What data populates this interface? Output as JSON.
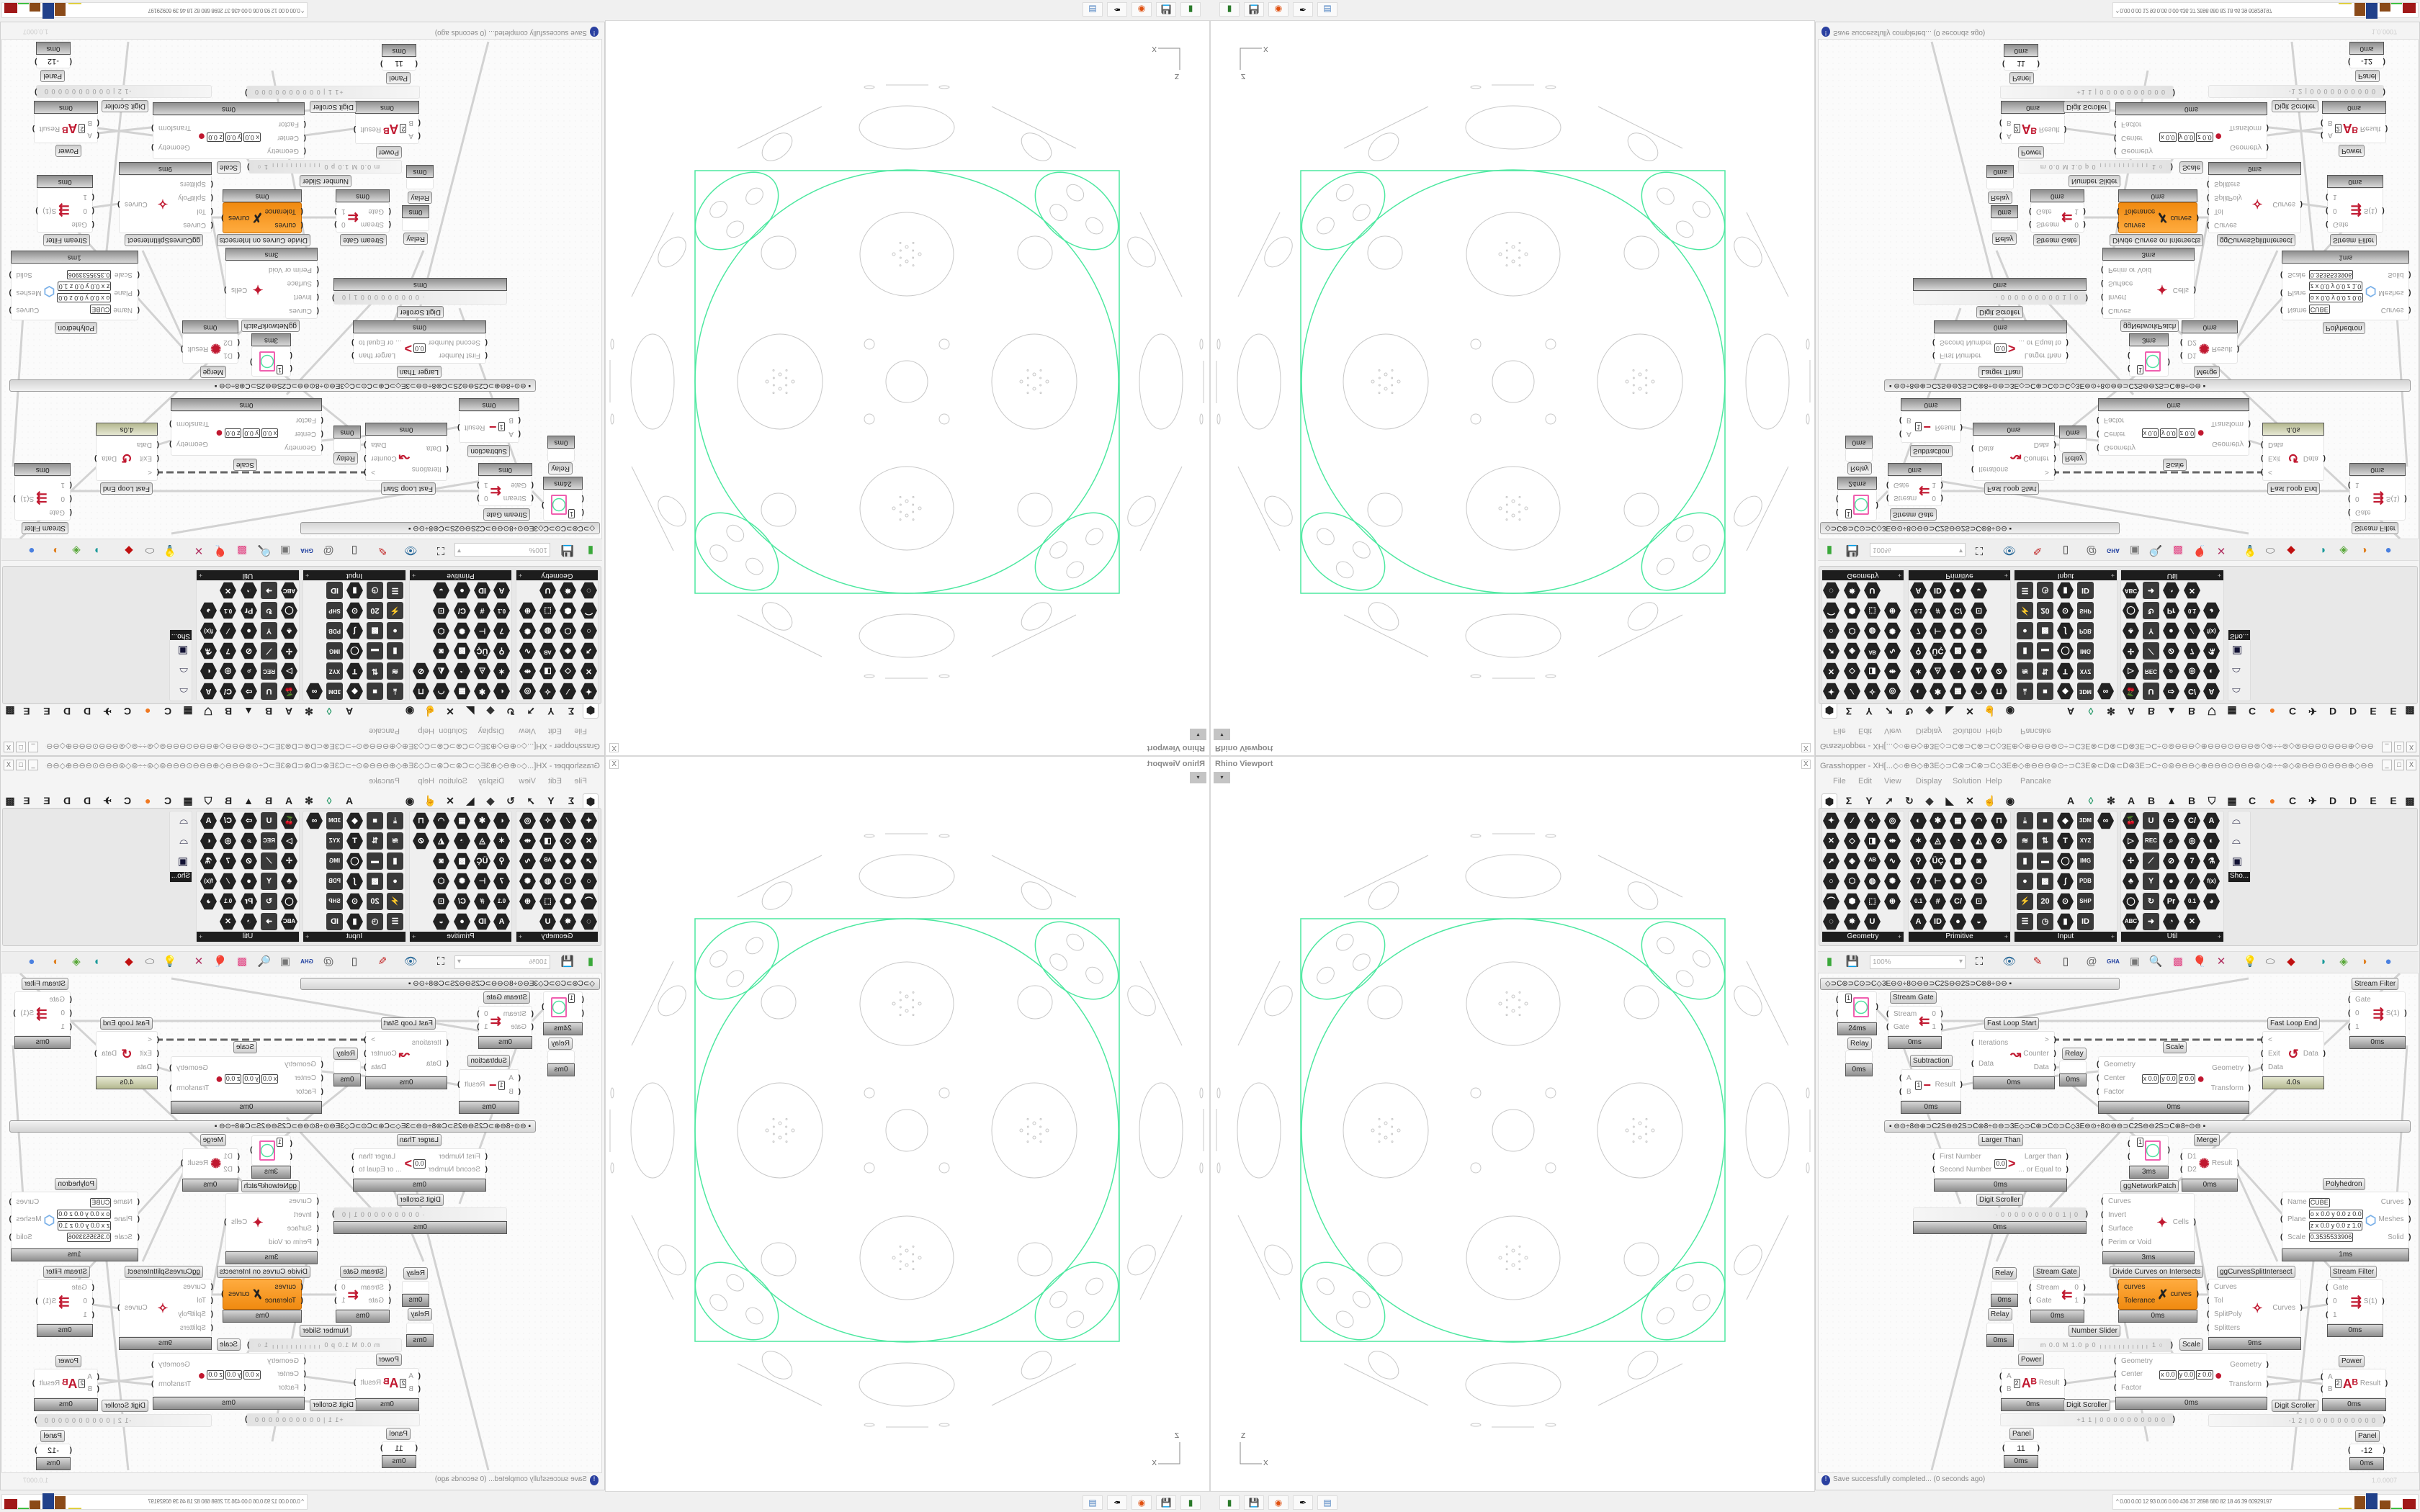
{
  "viewport": {
    "title": "Rhino Viewport",
    "close": "X",
    "dropdown": "▾",
    "axis_z": "Z",
    "axis_x": "X",
    "curve_color": "#4de8a0",
    "geometry_color": "#c8c8c8"
  },
  "gh": {
    "title": "Grasshopper - XH[...◇○⊕⊖◇⊕3E◇⊃C⊗⊃C⊗⊃C◇3E⊕◇⊕⊖⊖⊖⊚⊙÷⊃C3E⊗⊂D⊗⊂D⊗3E⊃C÷⊙⊚⊖⊖⊖◇⊕⊖⊖⊖⊙⊖⊖⊖⊚◇⊚÷÷⊚◇⊚⊖⊖⊖⊙⊖⊖⊖⊕◇⊖⊖⊖⊚⊙÷⊃C3E⊗⊂D⊗⊂D...",
    "window_buttons": [
      "_",
      "□",
      "X"
    ],
    "menu": [
      "File",
      "Edit",
      "View",
      "Display",
      "Solution",
      "Help",
      "Pancake"
    ],
    "tabs": [
      "⬢",
      "Σ",
      "Y",
      "➚",
      "↻",
      "◆",
      "◣",
      "✕",
      "☝",
      "◉",
      "A",
      "◊",
      "✻",
      "A",
      "B",
      "▲",
      "B",
      "⛉",
      "▦",
      "C",
      "●",
      "C",
      "✈",
      "D",
      "D",
      "E",
      "E",
      "▩"
    ],
    "ribbon": [
      {
        "label": "Geometry",
        "icons": [
          "✦",
          "⁄",
          "✧",
          "◎",
          "✕",
          "◇",
          "◨",
          "⇹",
          "➚",
          "◈",
          "ᴬᴮ",
          "∿",
          "○",
          "⬡",
          "◍",
          "✺",
          "⌒",
          "⬢",
          "⬚",
          "⊛",
          "◌",
          "✵",
          "U"
        ]
      },
      {
        "label": "Primitive",
        "icons": [
          "◐",
          "✱",
          "▦",
          "◠",
          "⊓",
          "✶",
          "◬",
          "◔",
          "◭",
          "⊘",
          "⚲",
          "ÜÇ",
          "▩",
          "◙",
          "7",
          "⊢",
          "✺",
          "⬡",
          "0.1",
          "#",
          "C/",
          "⊡",
          "A",
          "ID",
          "●",
          "◒"
        ]
      },
      {
        "label": "Input",
        "icons": [
          "⤓",
          "■",
          "◆",
          "3DM",
          "∞",
          "≋",
          "⇅",
          "T",
          "XYZ",
          "▮",
          "▬",
          "◯",
          "IMG",
          "●",
          "▩",
          "∫",
          "PDB",
          "⚡",
          "20",
          "⊙",
          "SHP",
          "☰",
          "◷",
          "▮",
          "ID"
        ]
      },
      {
        "label": "Util",
        "icons": [
          "🍒",
          "U",
          "⇨",
          "C/",
          "A",
          "▷",
          "REC",
          "⌕",
          "◎",
          "◐",
          "✢",
          "⟋",
          "⊘",
          "7",
          "⚗",
          "♣",
          "Y",
          "●",
          "⁄",
          "f(x)",
          "◯",
          "↻",
          "Pr",
          "0.1",
          "◕",
          "ABC",
          "➜",
          "◔",
          "✕"
        ]
      }
    ],
    "sho": {
      "label": "Sho...",
      "icons": [
        "⌓",
        "⌓",
        "▣"
      ]
    },
    "toolbar": {
      "zoom": "100%",
      "zoom_arrow": "▾",
      "icons": [
        "new-file-icon",
        "save-icon",
        "zoom-extents-icon",
        "preview-eye-icon",
        "sketch-brush-icon",
        "cylinder-icon",
        "at-sign-icon",
        "gha-icon",
        "picture-icon",
        "search-icon",
        "package-icon",
        "balloon-icon",
        "wire-cross-icon",
        "bulb-icon",
        "capsule-icon",
        "red-gem-icon",
        "teal-shape-icon",
        "green-shape-icon",
        "half-sphere-icon",
        "blue-sphere-icon"
      ]
    },
    "groups": [
      "◇⊃C⊛⊃C⊙⊃C◇3E⊖⊙÷8⊙⊖⊖⊃C2S⊖⊖2S⊃C⊛8÷⊙⊖  ▪",
      "▪   ⊖⊙÷8⊖⊛⊃C2S⊖⊖2S⊃C⊛8÷⊙⊖⊃3E◇⊃C⊛⊃C⊙⊃C◇3E⊖⊙÷8⊙⊖⊖⊃C2S⊖⊖2S⊃C⊛8÷⊙⊖   ▪"
    ],
    "components": [
      {
        "id": "sf1",
        "label": "Stream Filter",
        "inputs": [
          "Gate",
          "0",
          "1"
        ],
        "outputs": [
          "S(1)"
        ],
        "footer": "0ms",
        "icon": "⇶"
      },
      {
        "id": "pv1",
        "label": "",
        "inputs": [
          "",
          ""
        ],
        "outputs": [
          ""
        ],
        "footer": "24ms",
        "value": "1",
        "swatch": true
      },
      {
        "id": "rel1",
        "label": "Relay",
        "inputs": [],
        "outputs": [],
        "footer": "0ms"
      },
      {
        "id": "sg1",
        "label": "Stream Gate",
        "inputs": [
          "Stream",
          "Gate"
        ],
        "outputs": [
          "0",
          "1"
        ],
        "footer": "0ms",
        "icon": "⇇"
      },
      {
        "id": "fls",
        "label": "Fast Loop Start",
        "inputs": [
          "Iterations",
          "Data"
        ],
        "outputs": [
          ">",
          "Counter",
          "Data"
        ],
        "footer": "0ms",
        "icon": "↝"
      },
      {
        "id": "fle",
        "label": "Fast Loop End",
        "inputs": [
          "<",
          "Exit",
          "Data"
        ],
        "outputs": [
          "Data"
        ],
        "footer": "4.0s",
        "green": true,
        "icon": "↺"
      },
      {
        "id": "sub",
        "label": "Subtraction",
        "inputs": [
          "A",
          "B"
        ],
        "outputs": [
          "Result"
        ],
        "footer": "0ms",
        "values": [
          "1"
        ],
        "icon": "−"
      },
      {
        "id": "rel2",
        "label": "Relay",
        "inputs": [],
        "outputs": [],
        "footer": "0ms"
      },
      {
        "id": "sc1",
        "label": "Scale",
        "inputs": [
          "Geometry",
          "Center",
          "Factor"
        ],
        "outputs": [
          "Geometry",
          "Transform"
        ],
        "footer": "0ms",
        "values": [
          "x 0.0",
          "y 0.0",
          "z 0.0"
        ],
        "icon": "●"
      },
      {
        "id": "lt",
        "label": "Larger Than",
        "inputs": [
          "First Number",
          "Second Number"
        ],
        "outputs": [
          "Larger than",
          "... or Equal to"
        ],
        "footer": "0ms",
        "values": [
          "0.0"
        ],
        "icon": ">"
      },
      {
        "id": "pv2",
        "label": "",
        "inputs": [
          "",
          ""
        ],
        "outputs": [
          ""
        ],
        "footer": "3ms",
        "value": "1",
        "swatch": true
      },
      {
        "id": "cells",
        "label": "ggNetworkPatch",
        "inputs": [
          "Curves",
          "Invert",
          "Surface",
          "Perim or Void"
        ],
        "outputs": [
          "Cells"
        ],
        "footer": "3ms",
        "icon": "✦"
      },
      {
        "id": "mg",
        "label": "Merge",
        "inputs": [
          "D1",
          "D2"
        ],
        "outputs": [
          "Result"
        ],
        "footer": "0ms",
        "icon": "✺"
      },
      {
        "id": "ds1",
        "label": "Digit Scroller",
        "inputs": [],
        "outputs": [
          ""
        ],
        "footer": "0ms",
        "scroller": "· 0 0 0 0 0 0 0 0 0 1 | 0"
      },
      {
        "id": "ph",
        "label": "Polyhedron",
        "inputs": [
          "Name",
          "Plane",
          "Scale"
        ],
        "outputs": [
          "Curves",
          "Meshes",
          "Solid"
        ],
        "footer": "1ms",
        "values": [
          "CUBE",
          "o x 0.0 y 0.0 z 0.0",
          "z x 0.0 y 0.0 z 1.0",
          "0.3535533906"
        ],
        "icon": "⬡"
      },
      {
        "id": "rel3",
        "label": "Relay",
        "inputs": [],
        "outputs": [],
        "footer": "0ms"
      },
      {
        "id": "rel4",
        "label": "Relay",
        "inputs": [],
        "outputs": [],
        "footer": "0ms"
      },
      {
        "id": "sg2",
        "label": "Stream Gate",
        "inputs": [
          "Stream",
          "Gate"
        ],
        "outputs": [
          "0",
          "1"
        ],
        "footer": "0ms",
        "icon": "⇇"
      },
      {
        "id": "dci",
        "label": "Divide Curves on Intersects",
        "inputs": [
          "curves",
          "Tolerance"
        ],
        "outputs": [
          "curves"
        ],
        "footer": "0ms",
        "orange": true,
        "icon": "✗"
      },
      {
        "id": "gcsi",
        "label": "ggCurvesSplitIntersect",
        "inputs": [
          "Curves",
          "Tol",
          "SplitPoly",
          "Splitters"
        ],
        "outputs": [
          "Curves"
        ],
        "footer": "9ms",
        "icon": "✧"
      },
      {
        "id": "sf2",
        "label": "Stream Filter",
        "inputs": [
          "Gate",
          "0",
          "1"
        ],
        "outputs": [
          "S(1)"
        ],
        "footer": "0ms",
        "icon": "⇶"
      },
      {
        "id": "ns",
        "label": "Number Slider",
        "inputs": [],
        "outputs": [
          ""
        ],
        "footer": "",
        "scroller": "m 0.0  M 1.0  p 0   ╷╷╷╷╷╷╷╷╷╷╷ 1 ○"
      },
      {
        "id": "sc2",
        "label": "Scale",
        "inputs": [
          "Geometry",
          "Center",
          "Factor"
        ],
        "outputs": [
          "Geometry",
          "Transform"
        ],
        "footer": "0ms",
        "values": [
          "x 0.0",
          "y 0.0",
          "z 0.0"
        ],
        "icon": "●"
      },
      {
        "id": "pw1",
        "label": "Power",
        "inputs": [
          "A",
          "B"
        ],
        "outputs": [
          "Result"
        ],
        "footer": "0ms",
        "values": [
          "2"
        ],
        "icon": "Aᴮ"
      },
      {
        "id": "pw2",
        "label": "Power",
        "inputs": [
          "A",
          "B"
        ],
        "outputs": [
          "Result"
        ],
        "footer": "0ms",
        "values": [
          "2"
        ],
        "icon": "Aᴮ"
      },
      {
        "id": "ds2",
        "label": "Digit Scroller",
        "inputs": [],
        "outputs": [
          ""
        ],
        "footer": "",
        "scroller": "+1 1 | 0 0 0 0 0 0 0 0 0 0"
      },
      {
        "id": "ds3",
        "label": "Digit Scroller",
        "inputs": [],
        "outputs": [
          ""
        ],
        "footer": "",
        "scroller": "-1 2 | 0 0 0 0 0 0 0 0 0 0"
      },
      {
        "id": "pn1",
        "label": "Panel",
        "inputs": [
          ""
        ],
        "outputs": [
          ""
        ],
        "footer": "0ms",
        "value": "11"
      },
      {
        "id": "pn2",
        "label": "Panel",
        "inputs": [
          ""
        ],
        "outputs": [
          ""
        ],
        "footer": "0ms",
        "value": "-12"
      }
    ],
    "status": {
      "message": "Save successfully completed... (0 seconds ago)",
      "version": "1.0.0007"
    }
  },
  "taskbar": {
    "icons": [
      "terminal-icon",
      "floppy-64-icon",
      "firefox-icon",
      "inkscape-icon",
      "calculator-icon"
    ],
    "stats_arrow": "^",
    "stats": "0.00 0.00  12  93  0.06 0.00  436  37  2698  680  82  18  46  39  60929197",
    "bar_colors": [
      "#e0d040",
      "#8a4a18",
      "#20408a",
      "#8a4a18",
      "#40c040",
      "#a01818"
    ]
  }
}
